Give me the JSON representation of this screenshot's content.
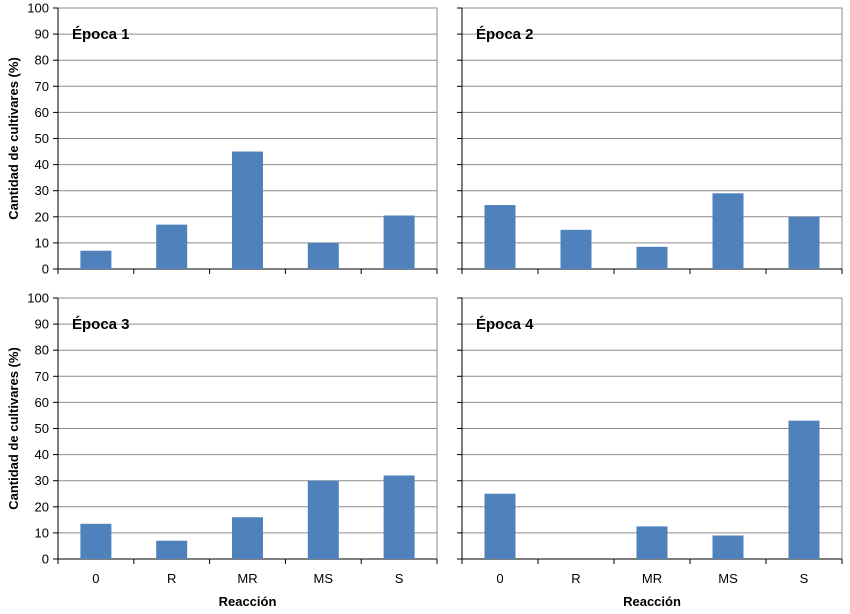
{
  "chart_data": {
    "type": "bar",
    "layout": "2x2 small multiples, shared axes",
    "ylabel": "Cantidad de cultivares  (%)",
    "xlabel": "Reacción",
    "categories": [
      "0",
      "R",
      "MR",
      "MS",
      "S"
    ],
    "yticks": [
      "0",
      "10",
      "20",
      "30",
      "40",
      "50",
      "60",
      "70",
      "80",
      "90",
      "100"
    ],
    "ylim": [
      0,
      100
    ],
    "grid": true,
    "bar_color": "#4f81bd",
    "panels": [
      {
        "title": "Época 1",
        "values": [
          7,
          17,
          45,
          10,
          20.5
        ]
      },
      {
        "title": "Época 2",
        "values": [
          24.5,
          15,
          8.5,
          29,
          20
        ]
      },
      {
        "title": "Época 3",
        "values": [
          13.5,
          7,
          16,
          30,
          32
        ]
      },
      {
        "title": "Época 4",
        "values": [
          25,
          0,
          12.5,
          9,
          53
        ]
      }
    ]
  }
}
